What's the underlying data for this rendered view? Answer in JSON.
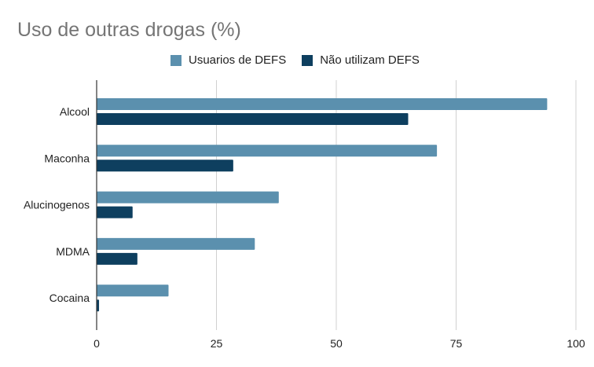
{
  "chart_data": {
    "type": "bar",
    "orientation": "horizontal",
    "title": "Uso de outras drogas (%)",
    "categories": [
      "Alcool",
      "Maconha",
      "Alucinogenos",
      "MDMA",
      "Cocaina"
    ],
    "series": [
      {
        "name": "Usuarios de DEFS",
        "color": "#5b90ae",
        "values": [
          94,
          71,
          38,
          33,
          15
        ]
      },
      {
        "name": "Não utilizam DEFS",
        "color": "#0e3f5f",
        "values": [
          65,
          28.5,
          7.5,
          8.5,
          0.5
        ]
      }
    ],
    "x_ticks": [
      "0",
      "25",
      "50",
      "75",
      "100"
    ],
    "xlim": [
      0,
      100
    ],
    "grid": true,
    "legend_position": "top"
  }
}
